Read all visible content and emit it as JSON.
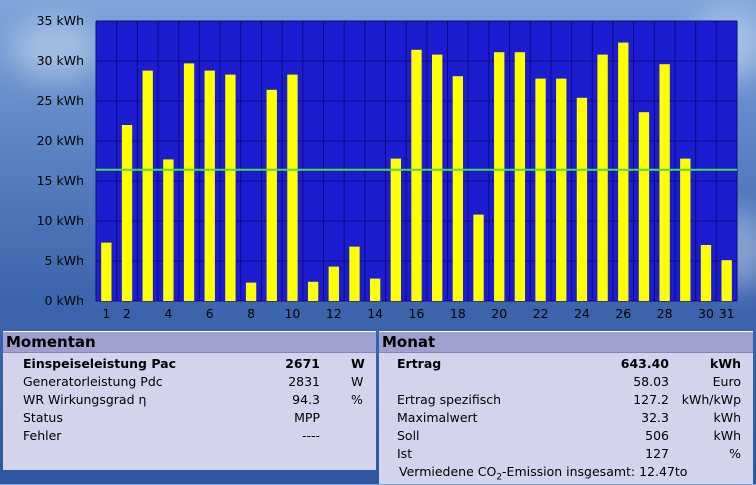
{
  "chart_data": {
    "type": "bar",
    "categories": [
      "1",
      "2",
      "3",
      "4",
      "5",
      "6",
      "7",
      "8",
      "9",
      "10",
      "11",
      "12",
      "13",
      "14",
      "15",
      "16",
      "17",
      "18",
      "19",
      "20",
      "21",
      "22",
      "23",
      "24",
      "25",
      "26",
      "27",
      "28",
      "29",
      "30",
      "31"
    ],
    "x_tick_labels": [
      "1",
      "2",
      "4",
      "6",
      "8",
      "10",
      "12",
      "14",
      "16",
      "18",
      "20",
      "22",
      "24",
      "26",
      "28",
      "30",
      "31"
    ],
    "values": [
      7.3,
      22.0,
      28.8,
      17.7,
      29.7,
      28.8,
      28.3,
      2.3,
      26.4,
      28.3,
      2.4,
      4.3,
      6.8,
      2.8,
      17.8,
      31.4,
      30.8,
      28.1,
      10.8,
      31.1,
      31.1,
      27.8,
      27.8,
      25.4,
      30.8,
      32.3,
      23.6,
      29.6,
      17.8,
      7.0,
      5.1
    ],
    "y_ticks": [
      "0 kWh",
      "5 kWh",
      "10 kWh",
      "15 kWh",
      "20 kWh",
      "25 kWh",
      "30 kWh",
      "35 kWh"
    ],
    "ylim": [
      0,
      35
    ],
    "reference_line": 16.4,
    "colors": {
      "bar": "#ffff00",
      "plot_bg": "#1c1cd0",
      "grid": "#0b0b80",
      "reference_line": "#44e044"
    }
  },
  "momentan": {
    "title": "Momentan",
    "rows": [
      {
        "label": "Einspeiseleistung Pac",
        "value": "2671",
        "unit": "W"
      },
      {
        "label": "Generatorleistung Pdc",
        "value": "2831",
        "unit": "W"
      },
      {
        "label": "WR Wirkungsgrad η",
        "value": "94.3",
        "unit": "%"
      },
      {
        "label": "Status",
        "value": "MPP",
        "unit": ""
      },
      {
        "label": "Fehler",
        "value": "----",
        "unit": ""
      }
    ]
  },
  "monat": {
    "title": "Monat",
    "rows": [
      {
        "label": "Ertrag",
        "value": "643.40",
        "unit": "kWh"
      },
      {
        "label": "",
        "value": "58.03",
        "unit": "Euro"
      },
      {
        "label": "Ertrag spezifisch",
        "value": "127.2",
        "unit": "kWh/kWp"
      },
      {
        "label": "Maximalwert",
        "value": "32.3",
        "unit": "kWh"
      },
      {
        "label": "Soll",
        "value": "506",
        "unit": "kWh"
      },
      {
        "label": "Ist",
        "value": "127",
        "unit": "%"
      }
    ]
  },
  "footer": {
    "co2_prefix": "Vermiedene CO",
    "co2_sub": "2",
    "co2_suffix": "-Emission insgesamt: 12.47to"
  }
}
